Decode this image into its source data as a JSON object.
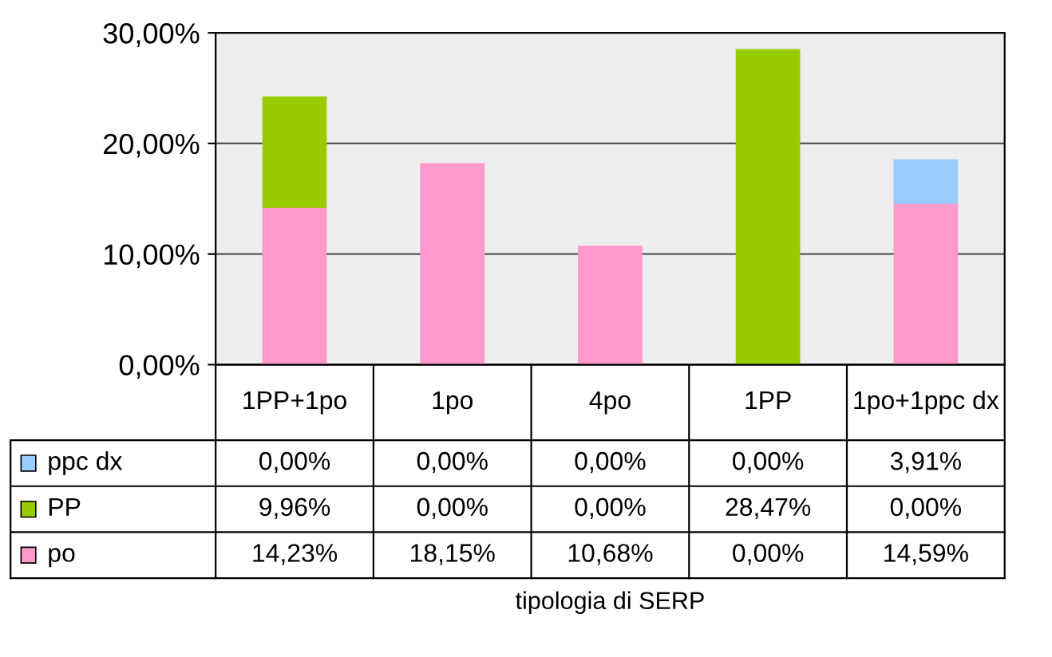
{
  "chart_data": {
    "type": "bar",
    "stacked": true,
    "annotations": [
      "tipologia di SERP"
    ],
    "categories": [
      "1PP+1po",
      "1po",
      "4po",
      "1PP",
      "1po+1ppc dx"
    ],
    "series": [
      {
        "name": "po",
        "color": "#ff99cc",
        "values": [
          14.23,
          18.15,
          10.68,
          0.0,
          14.59
        ],
        "value_labels": [
          "14,23%",
          "18,15%",
          "10,68%",
          "0,00%",
          "14,59%"
        ]
      },
      {
        "name": "PP",
        "color": "#99cc00",
        "values": [
          9.96,
          0.0,
          0.0,
          28.47,
          0.0
        ],
        "value_labels": [
          "9,96%",
          "0,00%",
          "0,00%",
          "28,47%",
          "0,00%"
        ]
      },
      {
        "name": "ppc dx",
        "color": "#99ccff",
        "values": [
          0.0,
          0.0,
          0.0,
          0.0,
          3.91
        ],
        "value_labels": [
          "0,00%",
          "0,00%",
          "0,00%",
          "0,00%",
          "3,91%"
        ]
      }
    ],
    "ylim": [
      0,
      30
    ],
    "yticks": [
      {
        "value": 0,
        "label": "0,00%"
      },
      {
        "value": 10,
        "label": "10,00%"
      },
      {
        "value": 20,
        "label": "20,00%"
      },
      {
        "value": 30,
        "label": "30,00%"
      }
    ],
    "grid": "y",
    "legend": "bottom left"
  }
}
